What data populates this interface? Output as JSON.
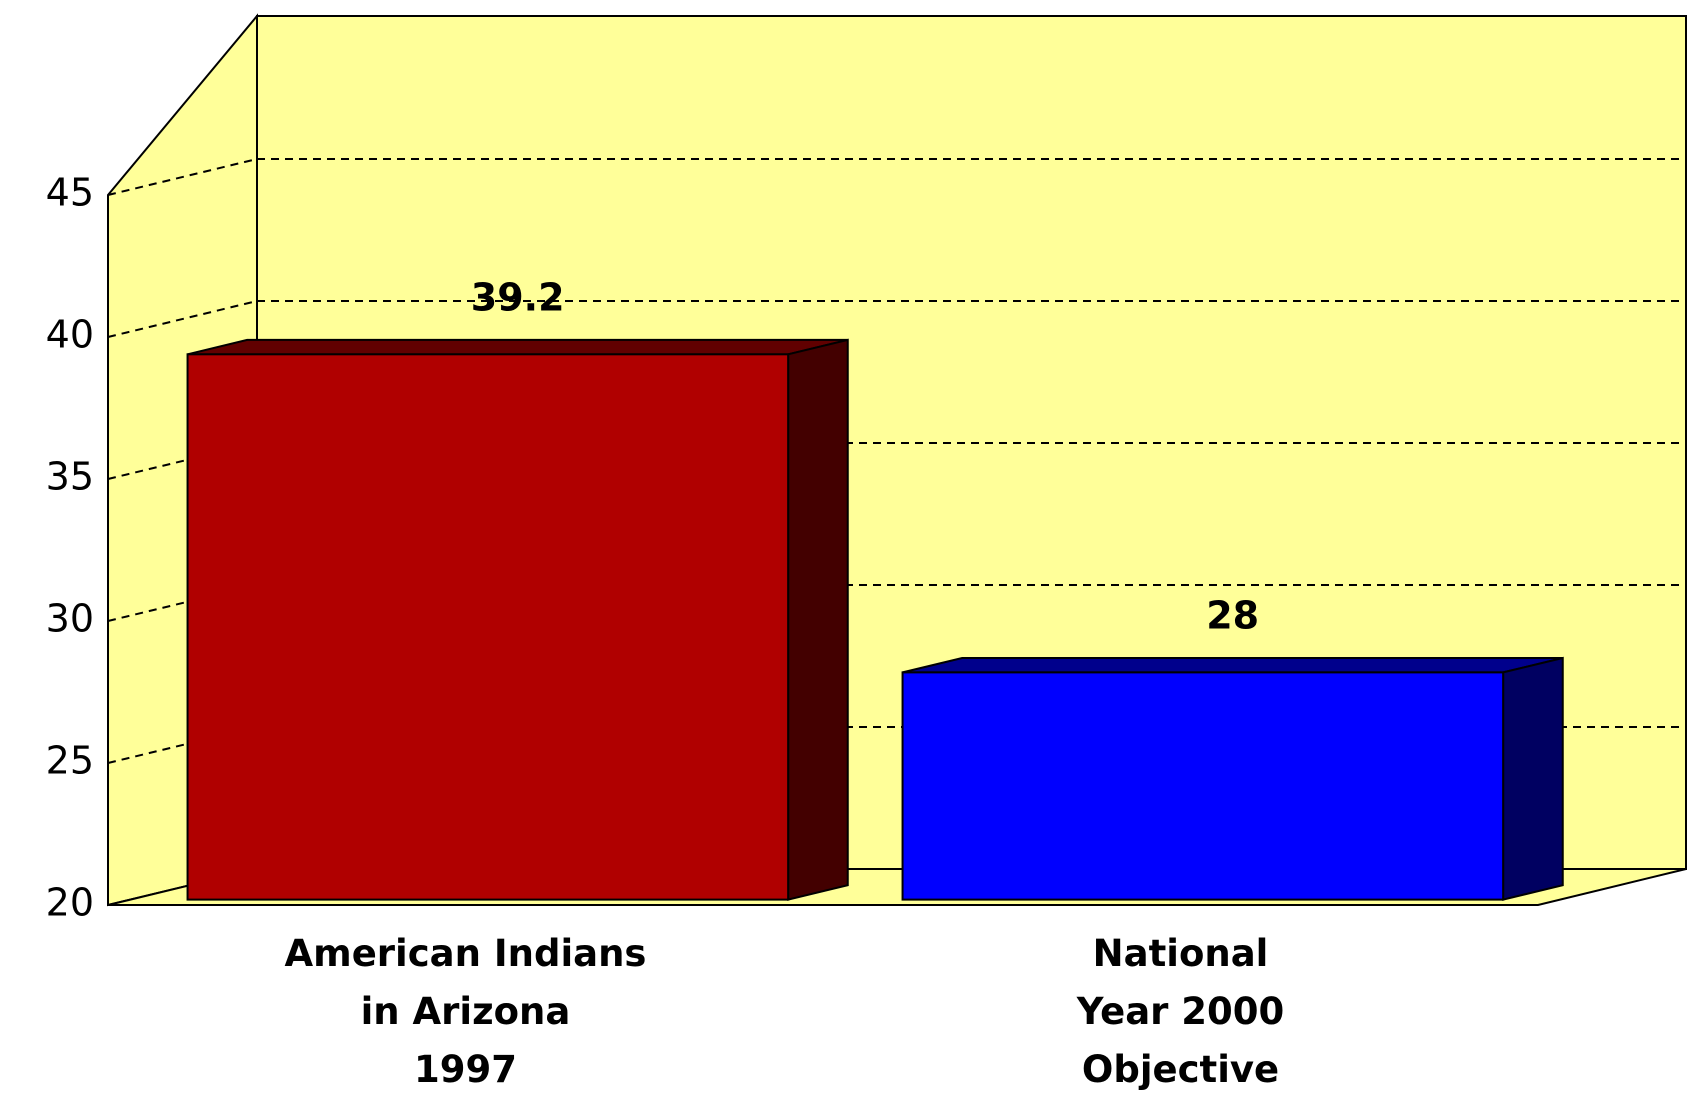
{
  "chart_data": {
    "type": "bar3d",
    "categories": [
      "American Indians\nin Arizona\n1997",
      "National\nYear 2000\nObjective"
    ],
    "values": [
      39.2,
      28
    ],
    "colors": [
      "#b00000",
      "#0000ff"
    ],
    "ylim": [
      20,
      45
    ],
    "yticks": [
      20,
      25,
      30,
      35,
      40,
      45
    ],
    "grid": true
  }
}
